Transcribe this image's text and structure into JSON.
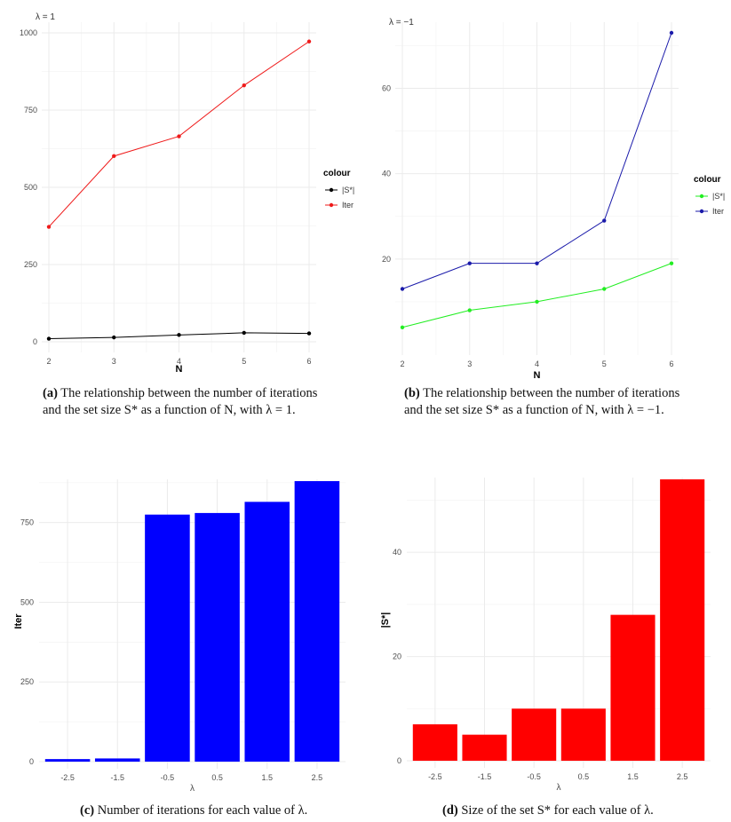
{
  "chart_data": [
    {
      "id": "a",
      "type": "line",
      "title": "λ = 1",
      "xlabel": "N",
      "ylabel": "",
      "x": [
        2,
        3,
        4,
        5,
        6
      ],
      "xlim": [
        2,
        6
      ],
      "ylim": [
        0,
        1000
      ],
      "yticks": [
        0,
        250,
        500,
        750,
        1000
      ],
      "legend_title": "colour",
      "legend_position": "right",
      "series": [
        {
          "name": "|S*|",
          "color": "#000000",
          "values": [
            10,
            14,
            22,
            29,
            27
          ]
        },
        {
          "name": "Iter",
          "color": "#ef1a1a",
          "values": [
            372,
            601,
            665,
            830,
            972
          ]
        }
      ]
    },
    {
      "id": "b",
      "type": "line",
      "title": "λ = −1",
      "xlabel": "N",
      "ylabel": "",
      "x": [
        2,
        3,
        4,
        5,
        6
      ],
      "xlim": [
        2,
        6
      ],
      "ylim": [
        0,
        73
      ],
      "yticks": [
        20,
        40,
        60
      ],
      "legend_title": "colour",
      "legend_position": "right",
      "series": [
        {
          "name": "|S*|",
          "color": "#22ee22",
          "values": [
            4,
            8,
            10,
            13,
            19
          ]
        },
        {
          "name": "Iter",
          "color": "#1a1aaa",
          "values": [
            13,
            19,
            19,
            29,
            73
          ]
        }
      ]
    },
    {
      "id": "c",
      "type": "bar",
      "title": "",
      "xlabel": "λ",
      "ylabel": "Iter",
      "categories": [
        "-2.5",
        "-1.5",
        "-0.5",
        "0.5",
        "1.5",
        "2.5"
      ],
      "values": [
        8,
        10,
        775,
        780,
        815,
        880
      ],
      "ylim": [
        0,
        880
      ],
      "yticks": [
        0,
        250,
        500,
        750
      ],
      "color": "#0000ff"
    },
    {
      "id": "d",
      "type": "bar",
      "title": "",
      "xlabel": "λ",
      "ylabel": "|S*|",
      "categories": [
        "-2.5",
        "-1.5",
        "-0.5",
        "0.5",
        "1.5",
        "2.5"
      ],
      "values": [
        7,
        5,
        10,
        10,
        28,
        54
      ],
      "ylim": [
        0,
        54
      ],
      "yticks": [
        0,
        20,
        40
      ],
      "color": "#ff0000"
    }
  ],
  "captions": {
    "a": {
      "label": "(a)",
      "line1": "The relationship between the number of iterations",
      "line2": "and the set size S* as a function of N, with λ = 1."
    },
    "b": {
      "label": "(b)",
      "line1": "The relationship between the number of iterations",
      "line2": "and the set size S* as a function of N, with λ = −1."
    },
    "c": {
      "label": "(c)",
      "text": "Number of iterations for each value of λ."
    },
    "d": {
      "label": "(d)",
      "text": "Size of the set S* for each value of λ."
    }
  }
}
